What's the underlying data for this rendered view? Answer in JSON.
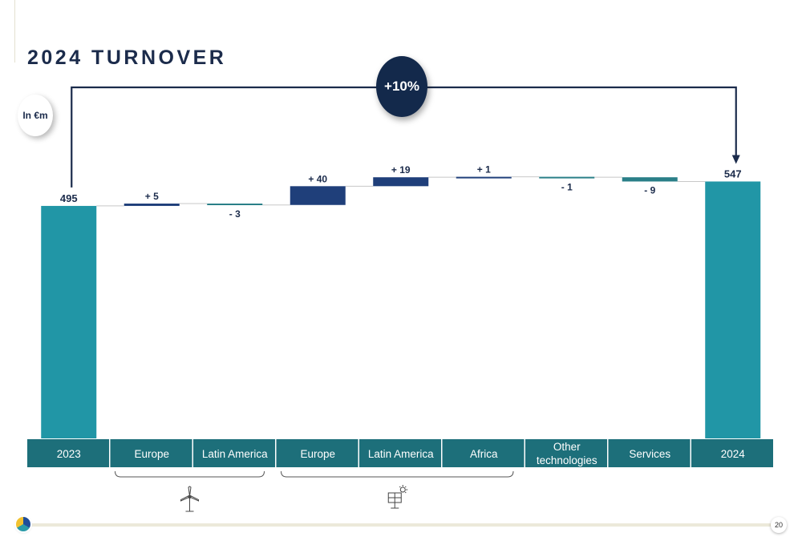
{
  "slide": {
    "title": "2024 TURNOVER",
    "unit_label": "In €m",
    "growth_label": "+10%",
    "page_number": "20"
  },
  "groups": [
    {
      "name": "wind-turbine-icon",
      "categories": [
        "Europe",
        "Latin America"
      ]
    },
    {
      "name": "solar-panel-icon",
      "categories": [
        "Europe",
        "Latin America",
        "Africa"
      ]
    }
  ],
  "colors": {
    "total": "#2196a6",
    "increase": "#1f3f7a",
    "decrease": "#2a7f88",
    "category_band": "#1d6f7a",
    "navy": "#1b2b4b",
    "connector": "#c8c8c8"
  },
  "chart_data": {
    "type": "bar",
    "subtype": "waterfall",
    "categories": [
      "2023",
      "Europe",
      "Latin America",
      "Europe",
      "Latin America",
      "Africa",
      "Other technologies",
      "Services",
      "2024"
    ],
    "values": [
      495,
      5,
      -3,
      40,
      19,
      1,
      -1,
      -9,
      547
    ],
    "kinds": [
      "total",
      "delta",
      "delta",
      "delta",
      "delta",
      "delta",
      "delta",
      "delta",
      "total"
    ],
    "labels": [
      "495",
      "+ 5",
      "- 3",
      "+ 40",
      "+ 19",
      "+ 1",
      "- 1",
      "- 9",
      "547"
    ],
    "title": "2024 TURNOVER",
    "ylabel": "In €m",
    "ylim": [
      0,
      547
    ],
    "annotations": [
      "+10%"
    ],
    "grid": false,
    "legend": "none"
  }
}
